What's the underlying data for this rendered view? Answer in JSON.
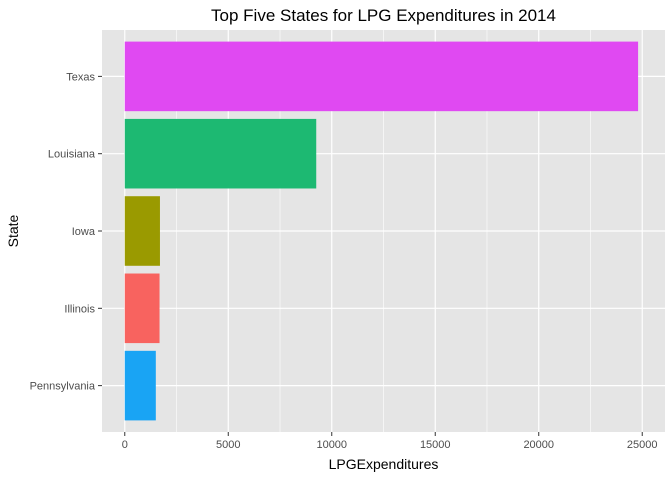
{
  "chart_data": {
    "type": "bar",
    "orientation": "horizontal",
    "title": "Top Five States for LPG Expenditures in 2014",
    "xlabel": "LPGExpenditures",
    "ylabel": "State",
    "categories": [
      "Texas",
      "Louisiana",
      "Iowa",
      "Illinois",
      "Pennsylvania"
    ],
    "values": [
      24800,
      9250,
      1700,
      1680,
      1500
    ],
    "colors": [
      "#E049F2",
      "#1DB972",
      "#9A9A00",
      "#F8635F",
      "#19A4F4"
    ],
    "xlim": [
      -1100,
      26100
    ],
    "xticks": [
      0,
      5000,
      10000,
      15000,
      20000,
      25000
    ],
    "xtick_labels": [
      "0",
      "5000",
      "10000",
      "15000",
      "20000",
      "25000"
    ],
    "grid": true,
    "panel_background": "#E5E5E5",
    "grid_color": "#FFFFFF",
    "legend": "none"
  }
}
